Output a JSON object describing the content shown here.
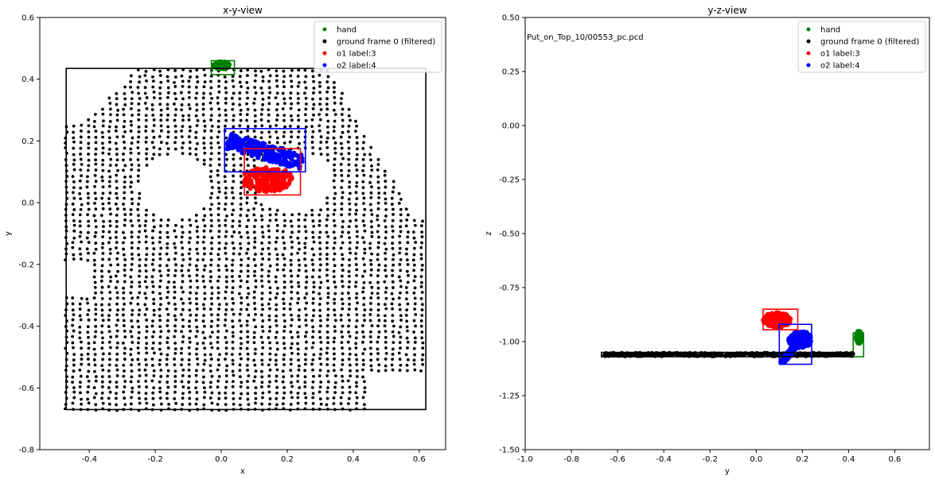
{
  "colors": {
    "hand": "#008000",
    "ground": "#000000",
    "o1": "#ff0000",
    "o2": "#0000ff"
  },
  "chart_data": [
    {
      "type": "scatter",
      "title": "x-y-view",
      "xlabel": "x",
      "ylabel": "y",
      "xlim": [
        -0.55,
        0.68
      ],
      "ylim": [
        -0.8,
        0.6
      ],
      "xticks": [
        "-0.4",
        "-0.2",
        "0.0",
        "0.2",
        "0.4",
        "0.6"
      ],
      "xtick_values": [
        -0.4,
        -0.2,
        0.0,
        0.2,
        0.4,
        0.6
      ],
      "yticks": [
        "-0.8",
        "-0.6",
        "-0.4",
        "-0.2",
        "0.0",
        "0.2",
        "0.4",
        "0.6"
      ],
      "ytick_values": [
        -0.8,
        -0.6,
        -0.4,
        -0.2,
        0.0,
        0.2,
        0.4,
        0.6
      ],
      "legend": [
        "hand",
        "ground frame 0 (filtered)",
        "o1 label:3",
        "o2 label:4"
      ],
      "legend_position": "top-right",
      "boxes": [
        {
          "series": "ground",
          "x": [
            -0.47,
            0.62
          ],
          "y": [
            -0.67,
            0.435
          ]
        },
        {
          "series": "hand",
          "x": [
            -0.03,
            0.04
          ],
          "y": [
            0.415,
            0.46
          ]
        },
        {
          "series": "o1",
          "x": [
            0.07,
            0.24
          ],
          "y": [
            0.025,
            0.175
          ]
        },
        {
          "series": "o2",
          "x": [
            0.01,
            0.255
          ],
          "y": [
            0.1,
            0.24
          ]
        }
      ],
      "clusters": [
        {
          "series": "hand",
          "shape": "blob",
          "center": [
            0.0,
            0.445
          ],
          "radius": [
            0.025,
            0.012
          ]
        },
        {
          "series": "o1",
          "shape": "blob",
          "center": [
            0.14,
            0.075
          ],
          "radius": [
            0.08,
            0.04
          ]
        },
        {
          "series": "o2",
          "shape": "band",
          "from": [
            0.02,
            0.2
          ],
          "to": [
            0.245,
            0.13
          ],
          "width": 0.05
        }
      ]
    },
    {
      "type": "scatter",
      "title": "y-z-view",
      "xlabel": "y",
      "ylabel": "z",
      "xlim": [
        -1.0,
        0.75
      ],
      "ylim": [
        -1.5,
        0.5
      ],
      "xticks": [
        "-1.0",
        "-0.8",
        "-0.6",
        "-0.4",
        "-0.2",
        "0.0",
        "0.2",
        "0.4",
        "0.6"
      ],
      "xtick_values": [
        -1.0,
        -0.8,
        -0.6,
        -0.4,
        -0.2,
        0.0,
        0.2,
        0.4,
        0.6
      ],
      "yticks": [
        "-1.50",
        "-1.25",
        "-1.00",
        "-0.75",
        "-0.50",
        "-0.25",
        "0.00",
        "0.25",
        "0.50"
      ],
      "ytick_values": [
        -1.5,
        -1.25,
        -1.0,
        -0.75,
        -0.5,
        -0.25,
        0.0,
        0.25,
        0.5
      ],
      "annotation": "Put_on_Top_10/00553_pc.pcd",
      "legend": [
        "hand",
        "ground frame 0 (filtered)",
        "o1 label:3",
        "o2 label:4"
      ],
      "legend_position": "top-right",
      "boxes": [
        {
          "series": "hand",
          "x": [
            0.42,
            0.465
          ],
          "y": [
            -1.07,
            -0.96
          ]
        },
        {
          "series": "o1",
          "x": [
            0.03,
            0.18
          ],
          "y": [
            -0.945,
            -0.85
          ]
        },
        {
          "series": "o2",
          "x": [
            0.1,
            0.24
          ],
          "y": [
            -1.105,
            -0.92
          ]
        },
        {
          "series": "ground",
          "x": [
            -0.67,
            0.42
          ],
          "y": [
            -1.07,
            -1.05
          ]
        }
      ],
      "clusters": [
        {
          "series": "ground",
          "shape": "band",
          "from": [
            -0.66,
            -1.06
          ],
          "to": [
            0.42,
            -1.06
          ],
          "width": 0.012
        },
        {
          "series": "hand",
          "shape": "blob",
          "center": [
            0.445,
            -0.98
          ],
          "radius": [
            0.012,
            0.03
          ]
        },
        {
          "series": "o1",
          "shape": "blob",
          "center": [
            0.09,
            -0.9
          ],
          "radius": [
            0.06,
            0.035
          ]
        },
        {
          "series": "o2",
          "shape": "blob",
          "center": [
            0.19,
            -0.99
          ],
          "radius": [
            0.05,
            0.04
          ]
        },
        {
          "series": "o2",
          "shape": "band",
          "from": [
            0.2,
            -0.98
          ],
          "to": [
            0.11,
            -1.1
          ],
          "width": 0.02
        }
      ]
    }
  ]
}
